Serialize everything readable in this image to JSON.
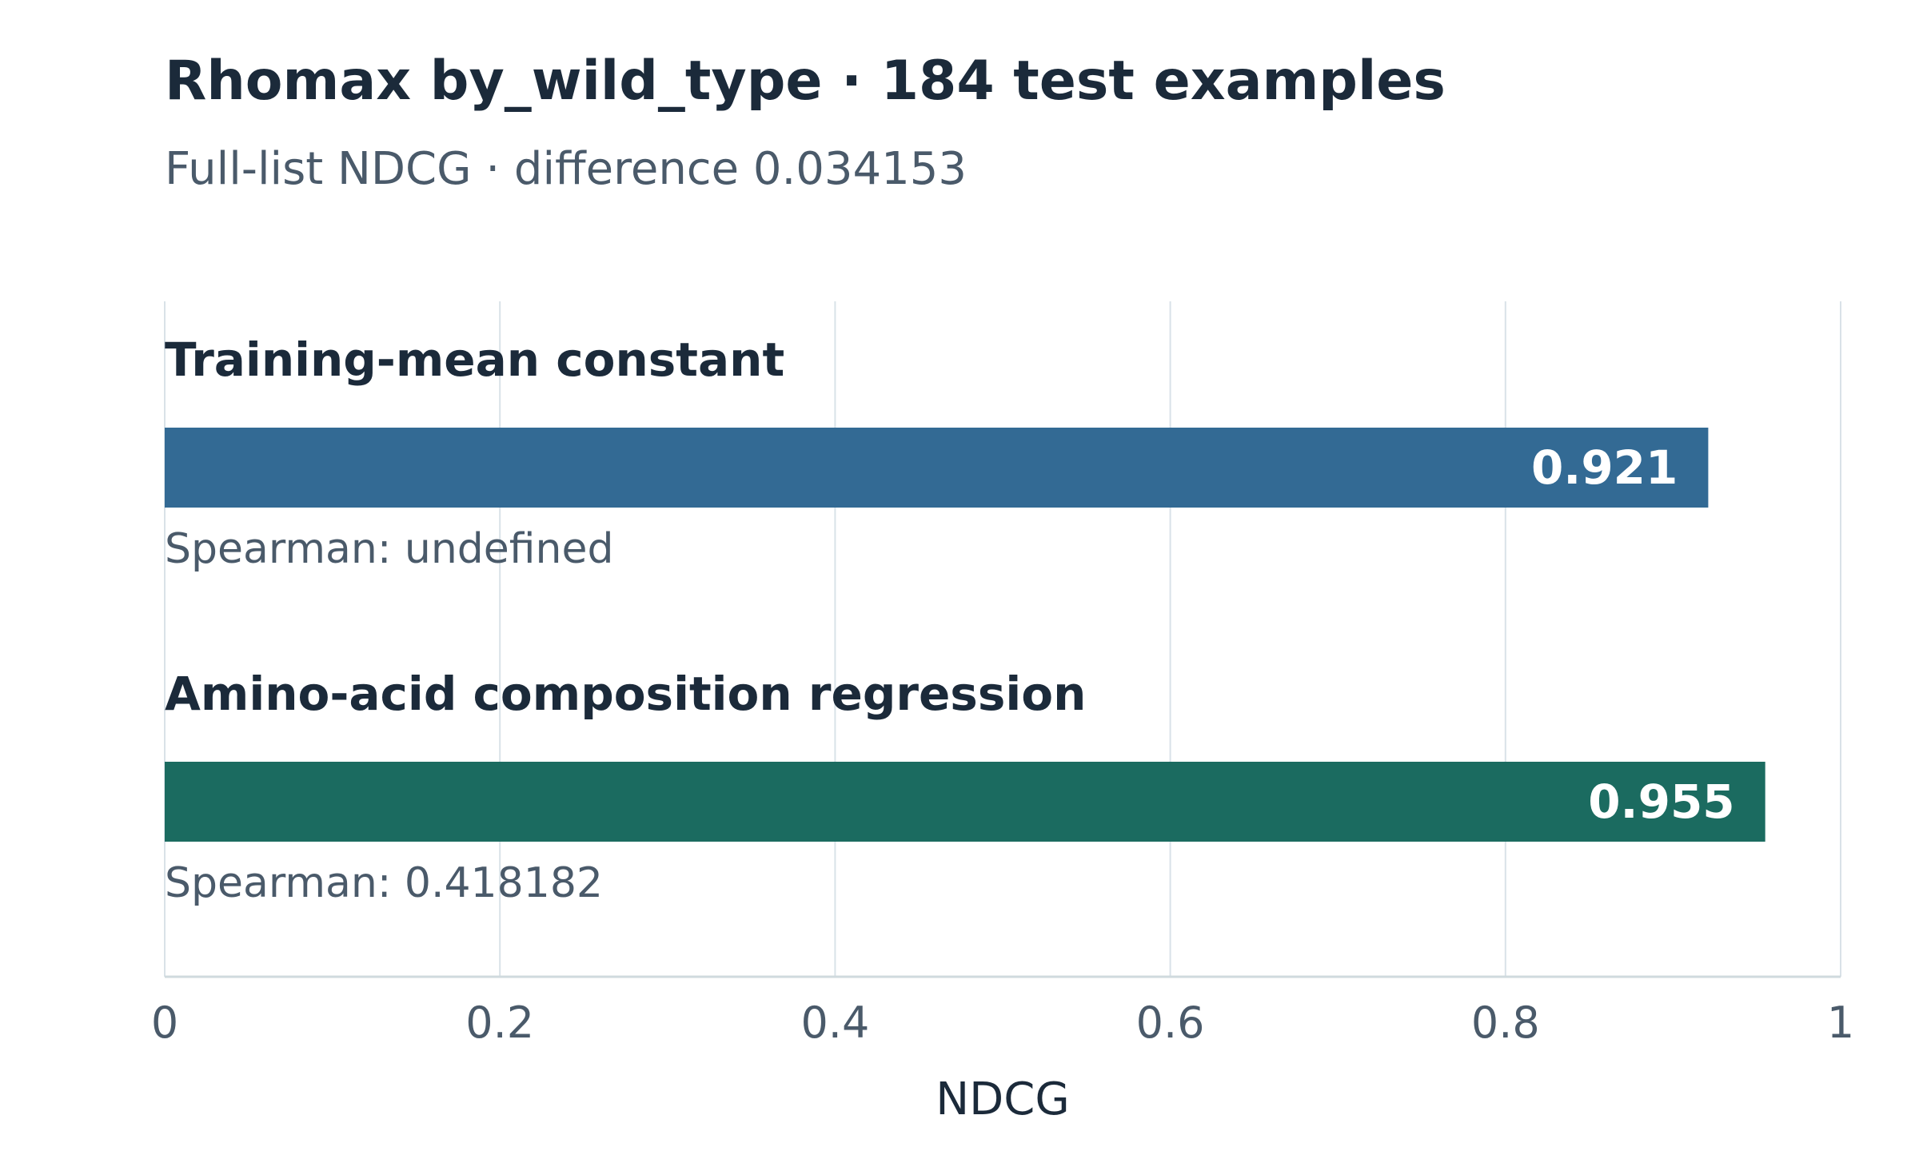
{
  "chart_data": {
    "type": "bar",
    "orientation": "horizontal",
    "title": "Rhomax by_wild_type · 184 test examples",
    "subtitle": "Full-list NDCG · difference 0.034153",
    "categories": [
      "Training-mean constant",
      "Amino-acid composition regression"
    ],
    "values": [
      0.921,
      0.955
    ],
    "notes": [
      "Spearman: undefined",
      "Spearman: 0.418182"
    ],
    "colors": [
      "#336a94",
      "#1b6b60"
    ],
    "xlim": [
      0,
      1
    ],
    "xticks": [
      0,
      0.2,
      0.4,
      0.6,
      0.8,
      1
    ],
    "xlabel": "NDCG",
    "grid": true
  }
}
